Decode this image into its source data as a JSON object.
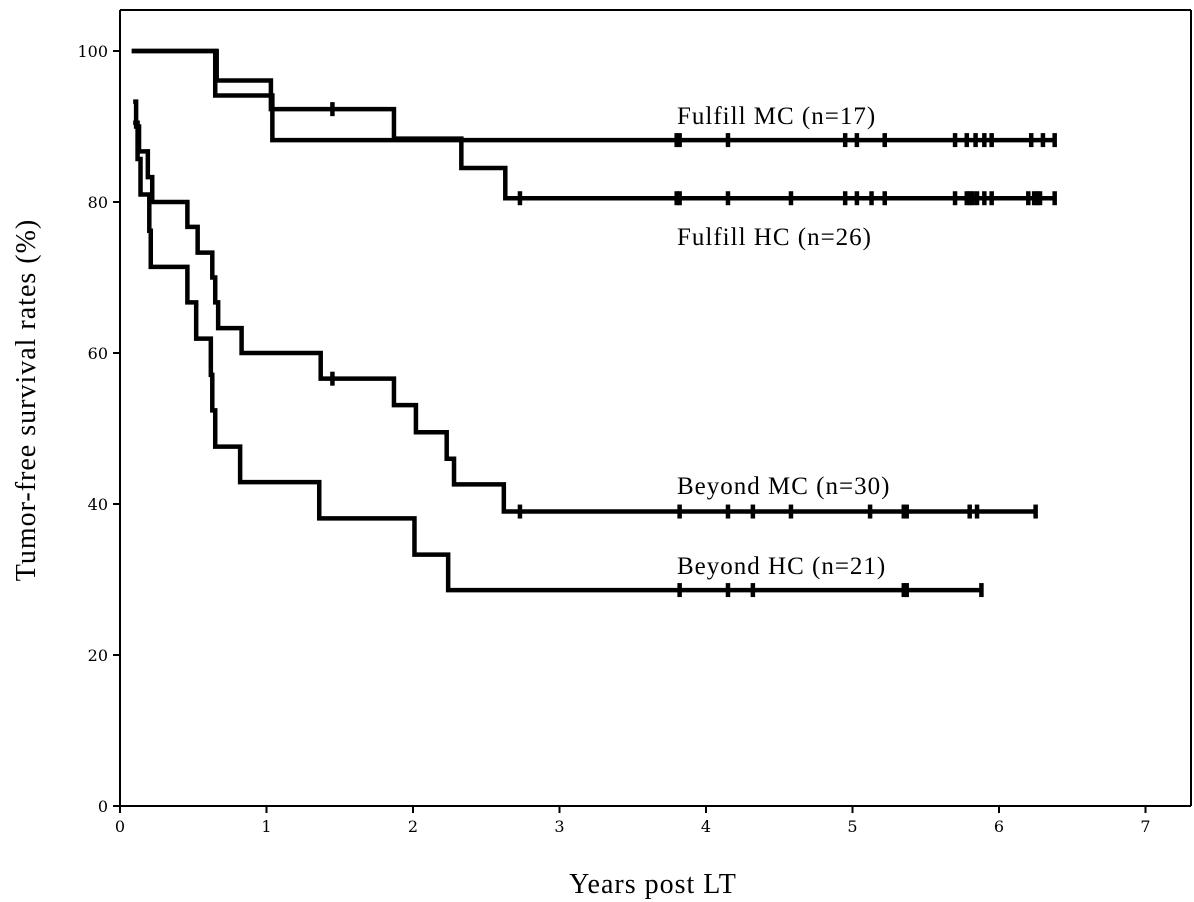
{
  "chart_data": {
    "type": "line",
    "step": true,
    "xlabel": "Years post LT",
    "ylabel": "Tumor-free survival rates (%)",
    "xlim": [
      0,
      7
    ],
    "ylim": [
      0,
      105
    ],
    "xticks": [
      0,
      1,
      2,
      3,
      4,
      5,
      6,
      7
    ],
    "yticks": [
      0,
      20,
      40,
      60,
      80,
      100
    ],
    "grid": false,
    "series": [
      {
        "name": "Fulfill MC (n=17)",
        "steps": [
          [
            0.08,
            100
          ],
          [
            0.65,
            94.1
          ],
          [
            1.04,
            88.2
          ],
          [
            6.38,
            88.2
          ]
        ],
        "censored": [
          3.8,
          3.82,
          4.15,
          4.95,
          5.03,
          5.22,
          5.7,
          5.78,
          5.84,
          5.9,
          5.95,
          6.22,
          6.3,
          6.38
        ]
      },
      {
        "name": "Fulfill HC (n=26)",
        "steps": [
          [
            0.08,
            100
          ],
          [
            0.66,
            96.1
          ],
          [
            1.03,
            92.3
          ],
          [
            1.87,
            88.4
          ],
          [
            2.33,
            84.5
          ],
          [
            2.63,
            80.5
          ],
          [
            6.38,
            80.5
          ]
        ],
        "censored": [
          1.45,
          2.73,
          3.8,
          3.82,
          4.15,
          4.58,
          4.95,
          5.03,
          5.13,
          5.22,
          5.7,
          5.78,
          5.8,
          5.82,
          5.85,
          5.9,
          5.95,
          6.2,
          6.24,
          6.26,
          6.28,
          6.38
        ]
      },
      {
        "name": "Beyond MC (n=30)",
        "steps": [
          [
            0.09,
            93.3
          ],
          [
            0.11,
            90.0
          ],
          [
            0.13,
            86.7
          ],
          [
            0.19,
            83.3
          ],
          [
            0.22,
            80.0
          ],
          [
            0.46,
            76.7
          ],
          [
            0.53,
            73.3
          ],
          [
            0.63,
            70.0
          ],
          [
            0.65,
            66.7
          ],
          [
            0.67,
            63.3
          ],
          [
            0.83,
            60.0
          ],
          [
            1.37,
            56.6
          ],
          [
            1.87,
            53.1
          ],
          [
            2.02,
            49.5
          ],
          [
            2.23,
            46.0
          ],
          [
            2.28,
            42.6
          ],
          [
            2.62,
            39.0
          ],
          [
            6.25,
            39.0
          ]
        ],
        "censored": [
          1.45,
          2.73,
          3.82,
          4.15,
          4.32,
          4.58,
          5.12,
          5.35,
          5.37,
          5.8,
          5.85,
          6.25
        ]
      },
      {
        "name": "Beyond HC (n=21)",
        "steps": [
          [
            0.09,
            90.5
          ],
          [
            0.12,
            85.7
          ],
          [
            0.14,
            81.0
          ],
          [
            0.2,
            76.2
          ],
          [
            0.21,
            71.4
          ],
          [
            0.46,
            66.7
          ],
          [
            0.52,
            61.9
          ],
          [
            0.62,
            57.1
          ],
          [
            0.63,
            52.4
          ],
          [
            0.65,
            47.6
          ],
          [
            0.82,
            42.9
          ],
          [
            1.36,
            38.1
          ],
          [
            2.01,
            33.3
          ],
          [
            2.24,
            28.6
          ],
          [
            5.88,
            28.6
          ]
        ],
        "censored": [
          3.82,
          4.15,
          4.32,
          5.35,
          5.37,
          5.88
        ]
      }
    ]
  }
}
